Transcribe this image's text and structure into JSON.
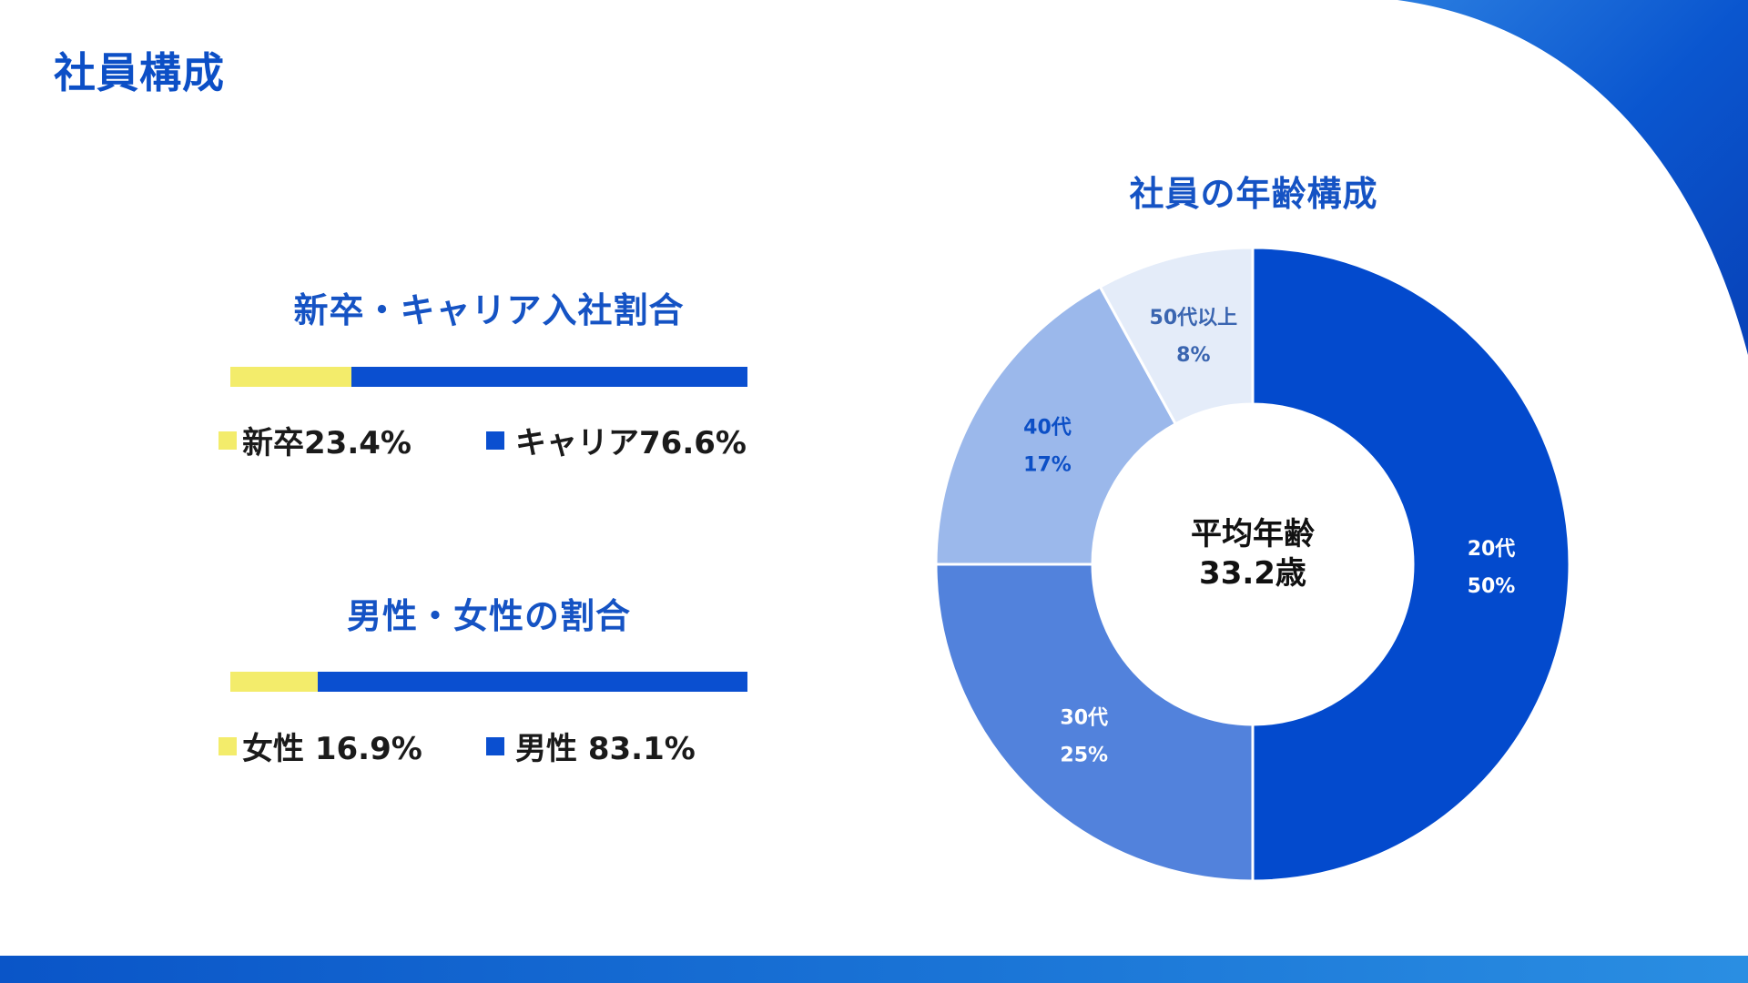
{
  "page": {
    "title": "社員構成"
  },
  "hire_ratio": {
    "title": "新卒・キャリア入社割合",
    "items": [
      {
        "label": "新卒23.4%",
        "value": 23.4,
        "color": "#f3ec6b"
      },
      {
        "label": "キャリア76.6%",
        "value": 76.6,
        "color": "#0a4fd0"
      }
    ]
  },
  "gender_ratio": {
    "title": "男性・女性の割合",
    "items": [
      {
        "label": "女性 16.9%",
        "value": 16.9,
        "color": "#f3ec6b"
      },
      {
        "label": "男性 83.1%",
        "value": 83.1,
        "color": "#0a4fd0"
      }
    ]
  },
  "chart_data": {
    "type": "pie",
    "title": "社員の年齢構成",
    "center_label": "平均年齢",
    "center_value": "33.2歳",
    "slices": [
      {
        "category": "20代",
        "value": 50,
        "label": "50%",
        "color": "#034acd",
        "text_color": "#ffffff"
      },
      {
        "category": "30代",
        "value": 25,
        "label": "25%",
        "color": "#5282dc",
        "text_color": "#ffffff"
      },
      {
        "category": "40代",
        "value": 17,
        "label": "17%",
        "color": "#9bb8eb",
        "text_color": "#0c4fc6"
      },
      {
        "category": "50代以上",
        "value": 8,
        "label": "8%",
        "color": "#e4ecf9",
        "text_color": "#3a65b0"
      }
    ]
  }
}
